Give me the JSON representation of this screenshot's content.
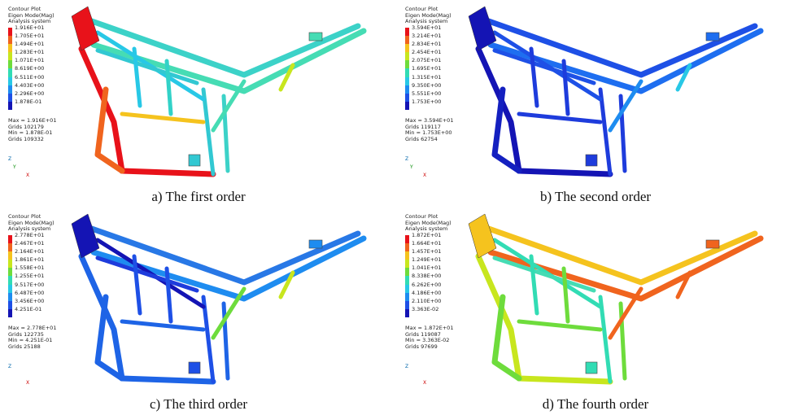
{
  "panels": [
    {
      "legend": {
        "title": [
          "Contour Plot",
          "Eigen Mode(Mag)",
          "Analysis system"
        ],
        "labels": [
          "1.916E+01",
          "1.705E+01",
          "1.494E+01",
          "1.283E+01",
          "1.071E+01",
          "8.619E+00",
          "6.511E+00",
          "4.403E+00",
          "2.296E+00",
          "1.878E-01"
        ],
        "stats": [
          "Max = 1.916E+01",
          "Grids 102179",
          "Min = 1.878E-01",
          "Grids 109332"
        ]
      },
      "axes": [
        "Z",
        "Y",
        "X"
      ],
      "caption": "a) The first order"
    },
    {
      "legend": {
        "title": [
          "Contour Plot",
          "Eigen Mode(Mag)",
          "Analysis system"
        ],
        "labels": [
          "3.594E+01",
          "3.214E+01",
          "2.834E+01",
          "2.454E+01",
          "2.075E+01",
          "1.695E+01",
          "1.315E+01",
          "9.350E+00",
          "5.551E+00",
          "1.753E+00"
        ],
        "stats": [
          "Max = 3.594E+01",
          "Grids 119117",
          "Min = 1.753E+00",
          "Grids 62754"
        ]
      },
      "axes": [
        "Z",
        "Y",
        "X"
      ],
      "caption": "b) The second order"
    },
    {
      "legend": {
        "title": [
          "Contour Plot",
          "Eigen Mode(Mag)",
          "Analysis system"
        ],
        "labels": [
          "2.778E+01",
          "2.467E+01",
          "2.164E+01",
          "1.861E+01",
          "1.558E+01",
          "1.255E+01",
          "9.517E+00",
          "6.487E+00",
          "3.456E+00",
          "4.251E-01"
        ],
        "stats": [
          "Max = 2.778E+01",
          "Grids 122735",
          "Min = 4.251E-01",
          "Grids 25188"
        ]
      },
      "axes": [
        "Z",
        "X"
      ],
      "caption": "c) The third order"
    },
    {
      "legend": {
        "title": [
          "Contour Plot",
          "Eigen Mode(Mag)",
          "Analysis system"
        ],
        "labels": [
          "1.872E+01",
          "1.664E+01",
          "1.457E+01",
          "1.249E+01",
          "1.041E+01",
          "8.338E+00",
          "6.262E+00",
          "4.186E+00",
          "2.110E+00",
          "3.363E-02"
        ],
        "stats": [
          "Max = 1.872E+01",
          "Grids 119087",
          "Min = 3.363E-02",
          "Grids 97699"
        ]
      },
      "axes": [
        "Z",
        "X"
      ],
      "caption": "d) The fourth order"
    }
  ]
}
